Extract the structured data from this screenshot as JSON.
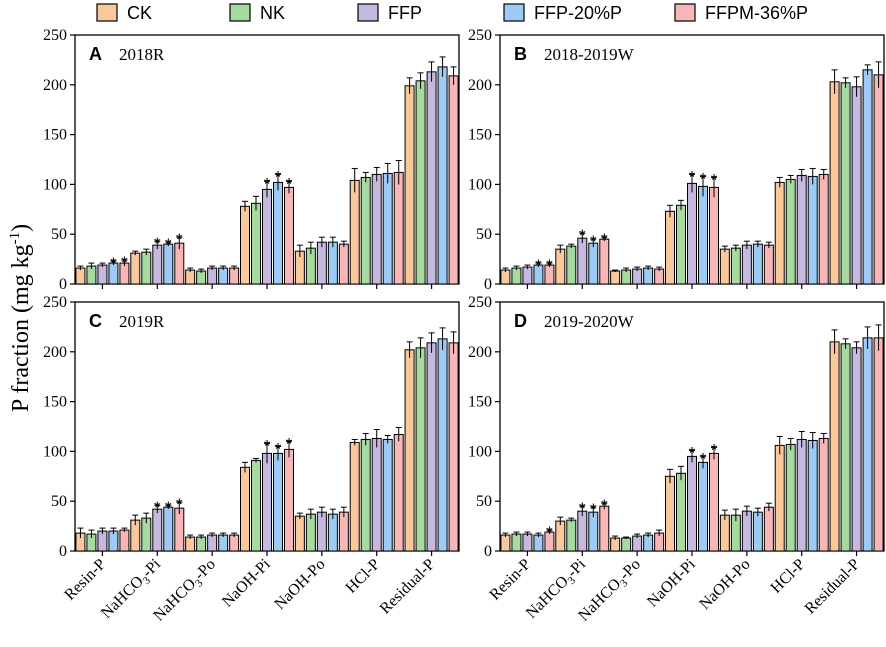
{
  "figure": {
    "ylabel": "P fraction (mg kg",
    "ylabel_sup": "-1",
    "ylabel_close": ")"
  },
  "legend": [
    {
      "label": "CK",
      "color": "#f9c89b"
    },
    {
      "label": "NK",
      "color": "#a6dba0"
    },
    {
      "label": "FFP",
      "color": "#c5b9e0"
    },
    {
      "label": "FFP-20%P",
      "color": "#9ecbf5"
    },
    {
      "label": "FFPM-36%P",
      "color": "#f7b7b7"
    }
  ],
  "chart_data": [
    {
      "type": "bar",
      "letter": "A",
      "title": "2018R",
      "categories": [
        "Resin-P",
        "NaHCO3-Pi",
        "NaHCO3-Po",
        "NaOH-Pi",
        "NaOH-Po",
        "HCl-P",
        "Residual-P"
      ],
      "category_labels": [
        [
          "Resin-P"
        ],
        [
          "NaHCO",
          "3",
          "-Pi"
        ],
        [
          "NaHCO",
          "3",
          "-Po"
        ],
        [
          "NaOH-Pi"
        ],
        [
          "NaOH-Po"
        ],
        [
          "HCl-P"
        ],
        [
          "Residual-P"
        ]
      ],
      "ylim": [
        0,
        250
      ],
      "yticks": [
        0,
        50,
        100,
        150,
        200,
        250
      ],
      "series": [
        {
          "name": "CK",
          "values": [
            16,
            31,
            14,
            78,
            33,
            104,
            199
          ],
          "errors": [
            2,
            2,
            2,
            5,
            6,
            12,
            8
          ]
        },
        {
          "name": "NK",
          "values": [
            18,
            32,
            13,
            81,
            36,
            107,
            204
          ],
          "errors": [
            3,
            3,
            2,
            7,
            6,
            5,
            8
          ]
        },
        {
          "name": "FFP",
          "values": [
            19,
            39,
            16,
            95,
            42,
            110,
            213
          ],
          "errors": [
            2,
            4,
            2,
            8,
            5,
            7,
            10
          ]
        },
        {
          "name": "FFP-20%P",
          "values": [
            21,
            40,
            16,
            102,
            42,
            111,
            218
          ],
          "errors": [
            2,
            2,
            2,
            8,
            5,
            10,
            10
          ]
        },
        {
          "name": "FFPM-36%P",
          "values": [
            21,
            41,
            16,
            97,
            40,
            112,
            209
          ],
          "errors": [
            3,
            6,
            2,
            6,
            3,
            12,
            9
          ]
        }
      ],
      "significance": [
        [
          false,
          false,
          false,
          true,
          true
        ],
        [
          false,
          false,
          true,
          true,
          true
        ],
        [
          false,
          false,
          false,
          false,
          false
        ],
        [
          false,
          false,
          true,
          true,
          true
        ],
        [
          false,
          false,
          false,
          false,
          false
        ],
        [
          false,
          false,
          false,
          false,
          false
        ],
        [
          false,
          false,
          false,
          false,
          false
        ]
      ]
    },
    {
      "type": "bar",
      "letter": "B",
      "title": "2018-2019W",
      "categories": [
        "Resin-P",
        "NaHCO3-Pi",
        "NaHCO3-Po",
        "NaOH-Pi",
        "NaOH-Po",
        "HCl-P",
        "Residual-P"
      ],
      "category_labels": [
        [
          "Resin-P"
        ],
        [
          "NaHCO",
          "3",
          "-Pi"
        ],
        [
          "NaHCO",
          "3",
          "-Po"
        ],
        [
          "NaOH-Pi"
        ],
        [
          "NaOH-Po"
        ],
        [
          "HCl-P"
        ],
        [
          "Residual-P"
        ]
      ],
      "ylim": [
        0,
        250
      ],
      "yticks": [
        0,
        50,
        100,
        150,
        200,
        250
      ],
      "series": [
        {
          "name": "CK",
          "values": [
            14,
            35,
            13,
            73,
            35,
            102,
            203
          ],
          "errors": [
            2,
            4,
            1,
            6,
            3,
            5,
            12
          ]
        },
        {
          "name": "NK",
          "values": [
            16,
            38,
            14,
            79,
            36,
            105,
            202
          ],
          "errors": [
            2,
            2,
            2,
            5,
            3,
            4,
            5
          ]
        },
        {
          "name": "FFP",
          "values": [
            17,
            46,
            15,
            101,
            39,
            109,
            198
          ],
          "errors": [
            2,
            5,
            2,
            9,
            4,
            6,
            10
          ]
        },
        {
          "name": "FFP-20%P",
          "values": [
            19,
            41,
            16,
            98,
            40,
            108,
            215
          ],
          "errors": [
            2,
            4,
            2,
            10,
            3,
            8,
            5
          ]
        },
        {
          "name": "FFPM-36%P",
          "values": [
            19,
            45,
            15,
            97,
            39,
            110,
            210
          ],
          "errors": [
            2,
            2,
            2,
            10,
            3,
            5,
            13
          ]
        }
      ],
      "significance": [
        [
          false,
          false,
          false,
          true,
          true
        ],
        [
          false,
          false,
          true,
          true,
          true
        ],
        [
          false,
          false,
          false,
          false,
          false
        ],
        [
          false,
          false,
          true,
          true,
          true
        ],
        [
          false,
          false,
          false,
          false,
          false
        ],
        [
          false,
          false,
          false,
          false,
          false
        ],
        [
          false,
          false,
          false,
          false,
          false
        ]
      ]
    },
    {
      "type": "bar",
      "letter": "C",
      "title": "2019R",
      "categories": [
        "Resin-P",
        "NaHCO3-Pi",
        "NaHCO3-Po",
        "NaOH-Pi",
        "NaOH-Po",
        "HCl-P",
        "Residual-P"
      ],
      "category_labels": [
        [
          "Resin-P"
        ],
        [
          "NaHCO",
          "3",
          "-Pi"
        ],
        [
          "NaHCO",
          "3",
          "-Po"
        ],
        [
          "NaOH-Pi"
        ],
        [
          "NaOH-Po"
        ],
        [
          "HCl-P"
        ],
        [
          "Residual-P"
        ]
      ],
      "ylim": [
        0,
        250
      ],
      "yticks": [
        0,
        50,
        100,
        150,
        200,
        250
      ],
      "series": [
        {
          "name": "CK",
          "values": [
            18,
            31,
            14,
            84,
            35,
            109,
            202
          ],
          "errors": [
            5,
            5,
            2,
            5,
            3,
            3,
            8
          ]
        },
        {
          "name": "NK",
          "values": [
            17,
            33,
            14,
            91,
            37,
            112,
            204
          ],
          "errors": [
            4,
            5,
            2,
            2,
            5,
            6,
            10
          ]
        },
        {
          "name": "FFP",
          "values": [
            20,
            42,
            16,
            98,
            39,
            113,
            209
          ],
          "errors": [
            3,
            4,
            2,
            10,
            5,
            9,
            10
          ]
        },
        {
          "name": "FFP-20%P",
          "values": [
            20,
            44,
            16,
            98,
            37,
            112,
            213
          ],
          "errors": [
            3,
            2,
            2,
            7,
            5,
            4,
            11
          ]
        },
        {
          "name": "FFPM-36%P",
          "values": [
            21,
            43,
            16,
            102,
            39,
            117,
            209
          ],
          "errors": [
            2,
            6,
            2,
            8,
            5,
            7,
            11
          ]
        }
      ],
      "significance": [
        [
          false,
          false,
          false,
          false,
          false
        ],
        [
          false,
          false,
          true,
          true,
          true
        ],
        [
          false,
          false,
          false,
          false,
          false
        ],
        [
          false,
          false,
          true,
          true,
          true
        ],
        [
          false,
          false,
          false,
          false,
          false
        ],
        [
          false,
          false,
          false,
          false,
          false
        ],
        [
          false,
          false,
          false,
          false,
          false
        ]
      ]
    },
    {
      "type": "bar",
      "letter": "D",
      "title": "2019-2020W",
      "categories": [
        "Resin-P",
        "NaHCO3-Pi",
        "NaHCO3-Po",
        "NaOH-Pi",
        "NaOH-Po",
        "HCl-P",
        "Residual-P"
      ],
      "category_labels": [
        [
          "Resin-P"
        ],
        [
          "NaHCO",
          "3",
          "-Pi"
        ],
        [
          "NaHCO",
          "3",
          "-Po"
        ],
        [
          "NaOH-Pi"
        ],
        [
          "NaOH-Po"
        ],
        [
          "HCl-P"
        ],
        [
          "Residual-P"
        ]
      ],
      "ylim": [
        0,
        250
      ],
      "yticks": [
        0,
        50,
        100,
        150,
        200,
        250
      ],
      "series": [
        {
          "name": "CK",
          "values": [
            16,
            30,
            13,
            75,
            36,
            106,
            210
          ],
          "errors": [
            2,
            4,
            2,
            7,
            5,
            9,
            12
          ]
        },
        {
          "name": "NK",
          "values": [
            17,
            31,
            13,
            78,
            36,
            107,
            208
          ],
          "errors": [
            2,
            2,
            1,
            7,
            6,
            6,
            5
          ]
        },
        {
          "name": "FFP",
          "values": [
            17,
            40,
            15,
            95,
            40,
            112,
            204
          ],
          "errors": [
            2,
            5,
            2,
            6,
            5,
            8,
            6
          ]
        },
        {
          "name": "FFP-20%P",
          "values": [
            16,
            39,
            16,
            89,
            39,
            111,
            214
          ],
          "errors": [
            2,
            5,
            2,
            6,
            4,
            8,
            11
          ]
        },
        {
          "name": "FFPM-36%P",
          "values": [
            19,
            45,
            18,
            98,
            44,
            113,
            214
          ],
          "errors": [
            2,
            3,
            3,
            6,
            4,
            5,
            13
          ]
        }
      ],
      "significance": [
        [
          false,
          false,
          false,
          false,
          true
        ],
        [
          false,
          false,
          true,
          true,
          true
        ],
        [
          false,
          false,
          false,
          false,
          false
        ],
        [
          false,
          false,
          true,
          true,
          true
        ],
        [
          false,
          false,
          false,
          false,
          false
        ],
        [
          false,
          false,
          false,
          false,
          false
        ],
        [
          false,
          false,
          false,
          false,
          false
        ]
      ]
    }
  ]
}
